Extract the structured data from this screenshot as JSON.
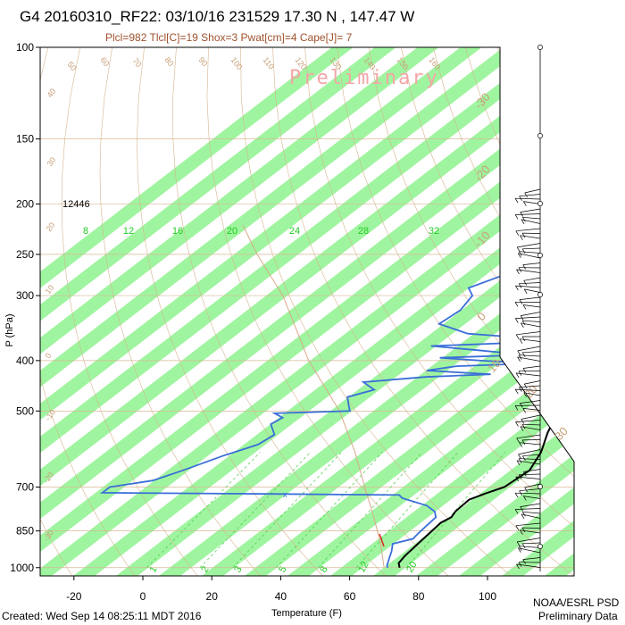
{
  "title": "G4 20160310_RF22: 03/10/16 231529  17.30 N , 147.47 W",
  "subtitle": "Plcl=982 Tlcl[C]=19 Shox=3 Pwat[cm]=4 Cape[J]= 7",
  "watermark": "Preliminary",
  "height_label": "12446",
  "footer_left": "Created: Wed Sep 14 08:25:11 MDT 2016",
  "footer_right_1": "NOAA/ESRL PSD",
  "footer_right_2": "Preliminary Data",
  "colors": {
    "band": "#9ff59f",
    "temperature": "#000000",
    "dewpoint": "#3a6fd8",
    "isotherm_label": "#c8a07a",
    "mixing_label": "#22cc22"
  },
  "chart_data": {
    "type": "line",
    "title": "G4 20160310_RF22: 03/10/16 231529  17.30 N , 147.47 W",
    "xlabel": "Temperature (F)",
    "ylabel": "P (hPa)",
    "x_ticks": [
      -20,
      0,
      20,
      40,
      60,
      80,
      100
    ],
    "y_ticks": [
      100,
      150,
      200,
      250,
      300,
      400,
      500,
      700,
      850,
      1000
    ],
    "xlim": [
      -28,
      112
    ],
    "ylim": [
      1050,
      100
    ],
    "y_scale": "log",
    "skew_top_isotherm_labels": [
      "50",
      "60",
      "70",
      "80",
      "90",
      "100",
      "110",
      "120",
      "130",
      "140",
      "150",
      "160"
    ],
    "skew_right_isotherm_labels": [
      "-30",
      "-20",
      "-10",
      "0",
      "10",
      "20",
      "30"
    ],
    "left_adiabat_labels": [
      "40",
      "30",
      "20",
      "10",
      "0",
      "-10",
      "-20",
      "-30"
    ],
    "mixing_ratio_labels_top": [
      "8",
      "12",
      "16",
      "20",
      "24",
      "28",
      "32"
    ],
    "mixing_ratio_labels_bottom": [
      "1",
      "2",
      "3",
      "5",
      "8",
      "12",
      "20"
    ],
    "series": [
      {
        "name": "Temperature",
        "points": [
          [
            1000,
            74.5
          ],
          [
            980,
            72.5
          ],
          [
            950,
            71.6
          ],
          [
            900,
            70.8
          ],
          [
            850,
            70.0
          ],
          [
            820,
            69.5
          ],
          [
            800,
            70.5
          ],
          [
            780,
            69.5
          ],
          [
            740,
            69.0
          ],
          [
            720,
            71.5
          ],
          [
            700,
            74.5
          ],
          [
            650,
            75.5
          ],
          [
            600,
            72.0
          ],
          [
            550,
            66.5
          ],
          [
            500,
            61.5
          ],
          [
            450,
            55.0
          ],
          [
            400,
            48.0
          ],
          [
            350,
            41.5
          ],
          [
            300,
            34.0
          ],
          [
            250,
            23.5
          ],
          [
            200,
            8.5
          ],
          [
            190,
            3.5
          ]
        ]
      },
      {
        "name": "Dewpoint",
        "points": [
          [
            1000,
            71.0
          ],
          [
            990,
            70.0
          ],
          [
            960,
            68.0
          ],
          [
            930,
            66.0
          ],
          [
            900,
            63.5
          ],
          [
            880,
            67.5
          ],
          [
            860,
            67.0
          ],
          [
            830,
            66.5
          ],
          [
            800,
            66.0
          ],
          [
            780,
            63.5
          ],
          [
            760,
            59.0
          ],
          [
            735,
            49.0
          ],
          [
            725,
            47.0
          ],
          [
            722,
            13.0
          ],
          [
            718,
            -40.0
          ],
          [
            712,
            -40.0
          ],
          [
            700,
            -40.0
          ],
          [
            680,
            -30.0
          ],
          [
            650,
            -25.0
          ],
          [
            610,
            -19.0
          ],
          [
            580,
            -13.0
          ],
          [
            555,
            -12.0
          ],
          [
            530,
            -17.0
          ],
          [
            515,
            -16.0
          ],
          [
            505,
            -20.0
          ],
          [
            500,
            1.0
          ],
          [
            490,
            -1.0
          ],
          [
            470,
            -5.0
          ],
          [
            455,
            0.0
          ],
          [
            440,
            -6.0
          ],
          [
            430,
            10.0
          ],
          [
            425,
            28.0
          ],
          [
            418,
            8.0
          ],
          [
            410,
            15.0
          ],
          [
            405,
            36.0
          ],
          [
            400,
            20.0
          ],
          [
            395,
            7.0
          ],
          [
            390,
            31.0
          ],
          [
            382,
            15.0
          ],
          [
            375,
            0.0
          ],
          [
            370,
            22.0
          ],
          [
            365,
            33.0
          ],
          [
            355,
            6.0
          ],
          [
            340,
            -6.0
          ],
          [
            320,
            -5.0
          ],
          [
            300,
            -7.0
          ],
          [
            290,
            -11.0
          ],
          [
            275,
            -6.0
          ],
          [
            260,
            -2.0
          ],
          [
            250,
            -3.0
          ],
          [
            240,
            -6.0
          ],
          [
            230,
            -7.0
          ],
          [
            220,
            -8.0
          ],
          [
            210,
            -10.0
          ]
        ]
      }
    ]
  }
}
